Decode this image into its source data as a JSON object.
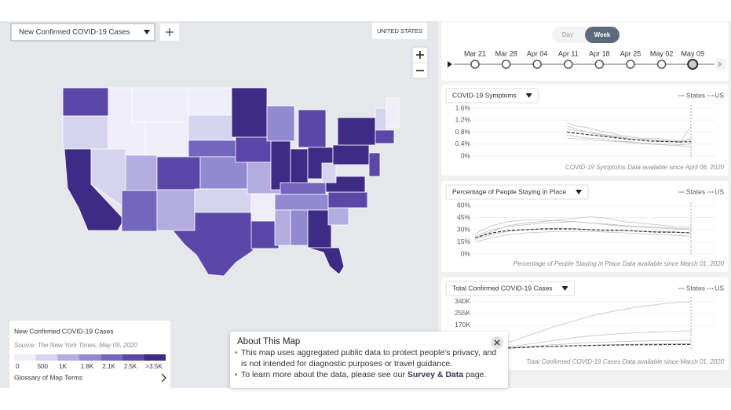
{
  "toolbar": {
    "metric_select": "New Confirmed COVID-19 Cases",
    "region_button": "UNITED STATES"
  },
  "timeline": {
    "modes": [
      "Day",
      "Week"
    ],
    "active_mode": 1,
    "dates": [
      "Mar 21",
      "Mar 28",
      "Apr 04",
      "Apr 11",
      "Apr 18",
      "Apr 25",
      "May 02",
      "May 09"
    ],
    "selected": 7
  },
  "map": {
    "levels": [
      5,
      1,
      6,
      0,
      1,
      0,
      0,
      2,
      4,
      5,
      2,
      0,
      1,
      4,
      3,
      1,
      5,
      6,
      5,
      2,
      0,
      5,
      3,
      6,
      5,
      6,
      6,
      4,
      3,
      2,
      3,
      6,
      6,
      2,
      5,
      6,
      1,
      6,
      6,
      1,
      0,
      5,
      5
    ]
  },
  "map_legend": {
    "title": "New Confirmed COVID-19 Cases",
    "source": "Source: The New York Times, May 09, 2020",
    "colors": [
      "#efedf8",
      "#d6d3ee",
      "#b3ace0",
      "#9389d0",
      "#7566bd",
      "#5a47a8",
      "#3d2b85"
    ],
    "labels": [
      "0",
      "500",
      "1K",
      "1.8K",
      "2.1K",
      "2.5K",
      ">3.5K"
    ],
    "glossary": "Glossary of Map Terms"
  },
  "panels": [
    {
      "chart_data": {
        "type": "line",
        "title": "COVID-19 Symptoms",
        "ylim": [
          0,
          1.6
        ],
        "yticks": [
          {
            "value": 1.6,
            "label": "1.6%"
          },
          {
            "value": 1.2,
            "label": "1.2%"
          },
          {
            "value": 0.8,
            "label": "0.8%"
          },
          {
            "value": 0.4,
            "label": "0.4%"
          },
          {
            "value": 0,
            "label": "0%"
          }
        ],
        "grid": true,
        "series": [
          {
            "name": "States",
            "color": "#c2c2c2",
            "lines": [
              [
                1.0,
                0.9,
                0.8,
                0.75,
                0.7,
                0.65,
                0.6,
                0.55,
                0.55,
                0.5,
                0.5,
                0.45,
                0.6
              ],
              [
                0.7,
                0.65,
                0.6,
                0.58,
                0.55,
                0.5,
                0.48,
                0.45,
                0.42,
                0.4,
                0.4,
                0.38,
                0.4
              ],
              [
                1.1,
                1.0,
                0.95,
                0.85,
                0.8,
                0.7,
                0.65,
                0.6,
                0.55,
                0.52,
                0.5,
                0.48,
                1.0
              ],
              [
                0.6,
                0.58,
                0.55,
                0.52,
                0.5,
                0.48,
                0.45,
                0.42,
                0.4,
                0.38,
                0.36,
                0.35,
                0.3
              ],
              [
                0.9,
                0.85,
                0.8,
                0.72,
                0.68,
                0.62,
                0.58,
                0.55,
                0.6,
                0.58,
                0.55,
                0.5,
                0.55
              ]
            ]
          },
          {
            "name": "US",
            "color": "#333333",
            "values": [
              0.8,
              0.76,
              0.72,
              0.68,
              0.64,
              0.6,
              0.56,
              0.53,
              0.5,
              0.49,
              0.48,
              0.47,
              0.48
            ]
          }
        ],
        "note": "COVID-19 Symptoms Data available since April 06, 2020"
      }
    },
    {
      "chart_data": {
        "type": "line",
        "title": "Percentage of People Staying in Place",
        "ylim": [
          0,
          60
        ],
        "yticks": [
          {
            "value": 60,
            "label": "60%"
          },
          {
            "value": 45,
            "label": "45%"
          },
          {
            "value": 30,
            "label": "30%"
          },
          {
            "value": 15,
            "label": "15%"
          },
          {
            "value": 0,
            "label": "0%"
          }
        ],
        "grid": true,
        "series": [
          {
            "name": "States",
            "color": "#c2c2c2",
            "lines": [
              [
                20,
                28,
                35,
                38,
                40,
                42,
                44,
                46,
                44,
                40,
                38,
                36,
                34,
                33
              ],
              [
                15,
                20,
                24,
                26,
                27,
                28,
                28,
                28,
                27,
                26,
                25,
                24,
                23,
                22
              ],
              [
                25,
                35,
                40,
                42,
                42,
                41,
                40,
                38,
                37,
                35,
                34,
                33,
                32,
                31
              ],
              [
                18,
                24,
                28,
                30,
                31,
                32,
                31,
                30,
                30,
                29,
                28,
                28,
                27,
                26
              ],
              [
                22,
                30,
                34,
                36,
                38,
                39,
                40,
                38,
                36,
                34,
                33,
                32,
                31,
                30
              ]
            ]
          },
          {
            "name": "US",
            "color": "#333333",
            "values": [
              20,
              26,
              29,
              30,
              31,
              31,
              31,
              30,
              29,
              29,
              28,
              27,
              27,
              26
            ]
          }
        ],
        "note": "Percentage of People Staying in Place Data available since March 01, 2020"
      }
    },
    {
      "chart_data": {
        "type": "line",
        "title": "Total Confirmed COVID-19 Cases",
        "ylim": [
          0,
          350000
        ],
        "yticks": [
          {
            "value": 340000,
            "label": "340K"
          },
          {
            "value": 255000,
            "label": "255K"
          },
          {
            "value": 170000,
            "label": "170K"
          }
        ],
        "grid": true,
        "series": [
          {
            "name": "States",
            "color": "#c2c2c2",
            "lines": [
              [
                0,
                20000,
                60000,
                110000,
                160000,
                200000,
                240000,
                270000,
                295000,
                315000,
                330000,
                340000
              ],
              [
                0,
                5000,
                20000,
                40000,
                60000,
                80000,
                95000,
                105000,
                115000,
                120000,
                125000,
                130000
              ],
              [
                0,
                3000,
                10000,
                20000,
                30000,
                38000,
                45000,
                50000,
                55000,
                58000,
                60000,
                62000
              ],
              [
                0,
                2000,
                6000,
                12000,
                18000,
                22000,
                26000,
                30000,
                33000,
                35000,
                37000,
                38000
              ]
            ]
          },
          {
            "name": "US",
            "color": "#333333",
            "values": [
              0,
              3000,
              8000,
              14000,
              18000,
              22000,
              25000,
              27000,
              29000,
              30000,
              31000,
              32000
            ]
          }
        ],
        "note": "Total Confirmed COVID-19 Cases Data available since March 01, 2020"
      }
    }
  ],
  "about": {
    "title": "About This Map",
    "bullets": [
      "This map uses aggregated public data to protect people's privacy, and is not intended for diagnostic purposes or travel guidance.",
      [
        "To learn more about the data, please see our ",
        "Survey & Data",
        " page."
      ]
    ]
  }
}
